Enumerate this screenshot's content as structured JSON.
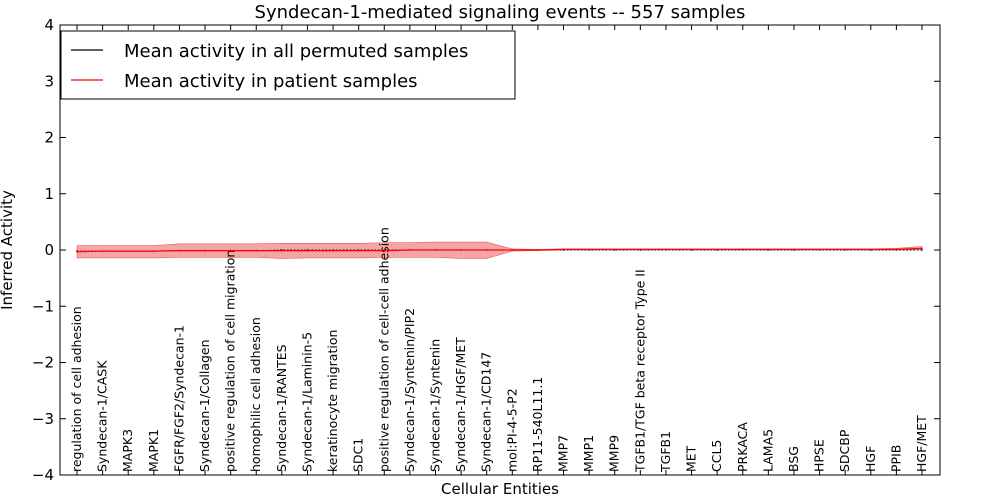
{
  "chart_data": {
    "type": "line",
    "title": "Syndecan-1-mediated signaling events -- 557 samples",
    "xlabel": "Cellular Entities",
    "ylabel": "Inferred Activity",
    "ylim": [
      -4,
      4
    ],
    "yticks": [
      "−4",
      "−3",
      "−2",
      "−1",
      "0",
      "1",
      "2",
      "3",
      "4"
    ],
    "grid": false,
    "legend_position": "top-left",
    "categories": [
      "regulation of cell adhesion",
      "Syndecan-1/CASK",
      "MAPK3",
      "MAPK1",
      "FGFR/FGF2/Syndecan-1",
      "Syndecan-1/Collagen",
      "positive regulation of cell migration",
      "homophilic cell adhesion",
      "Syndecan-1/RANTES",
      "Syndecan-1/Laminin-5",
      "keratinocyte migration",
      "SDC1",
      "positive regulation of cell-cell adhesion",
      "Syndecan-1/Syntenin/PIP2",
      "Syndecan-1/Syntenin",
      "Syndecan-1/HGF/MET",
      "Syndecan-1/CD147",
      "mol:PI-4-5-P2",
      "RP11-540L11.1",
      "MMP7",
      "MMP1",
      "MMP9",
      "TGFB1/TGF beta receptor Type II",
      "TGFB1",
      "MET",
      "CCL5",
      "PRKACA",
      "LAMA5",
      "BSG",
      "HPSE",
      "SDCBP",
      "HGF",
      "PPIB",
      "HGF/MET"
    ],
    "series": [
      {
        "name": "Mean activity in all permuted samples",
        "color": "#000000",
        "style": "dotted",
        "values": [
          -0.02,
          -0.02,
          -0.02,
          -0.02,
          -0.01,
          -0.01,
          -0.01,
          -0.01,
          0,
          0,
          0,
          0,
          0,
          0,
          0,
          0,
          0,
          0,
          0,
          0,
          0,
          0,
          0,
          0,
          0,
          0,
          0,
          0,
          0,
          0,
          0,
          0,
          0,
          0
        ]
      },
      {
        "name": "Mean activity in patient samples",
        "color": "#ff0000",
        "style": "solid",
        "values": [
          -0.03,
          -0.02,
          -0.02,
          -0.02,
          -0.01,
          -0.01,
          -0.01,
          -0.01,
          -0.01,
          -0.01,
          -0.01,
          -0.01,
          -0.01,
          0,
          0,
          0,
          0,
          0,
          0,
          0.01,
          0.01,
          0.01,
          0.01,
          0.01,
          0.01,
          0.01,
          0.01,
          0.01,
          0.01,
          0.01,
          0.01,
          0.01,
          0.01,
          0.03
        ]
      }
    ],
    "band": {
      "color": "#f08080",
      "upper": [
        0.08,
        0.08,
        0.08,
        0.08,
        0.11,
        0.11,
        0.11,
        0.11,
        0.12,
        0.12,
        0.12,
        0.12,
        0.13,
        0.13,
        0.14,
        0.14,
        0.14,
        0.02,
        0.01,
        0.02,
        0.02,
        0.02,
        0.02,
        0.02,
        0.02,
        0.02,
        0.02,
        0.02,
        0.02,
        0.02,
        0.02,
        0.02,
        0.03,
        0.06
      ],
      "lower": [
        -0.14,
        -0.14,
        -0.14,
        -0.14,
        -0.13,
        -0.13,
        -0.13,
        -0.13,
        -0.15,
        -0.14,
        -0.14,
        -0.14,
        -0.13,
        -0.13,
        -0.13,
        -0.15,
        -0.15,
        -0.02,
        -0.01,
        0,
        0,
        0,
        0,
        0,
        0,
        0,
        0,
        0,
        0,
        0,
        0,
        0,
        0,
        0
      ]
    }
  }
}
